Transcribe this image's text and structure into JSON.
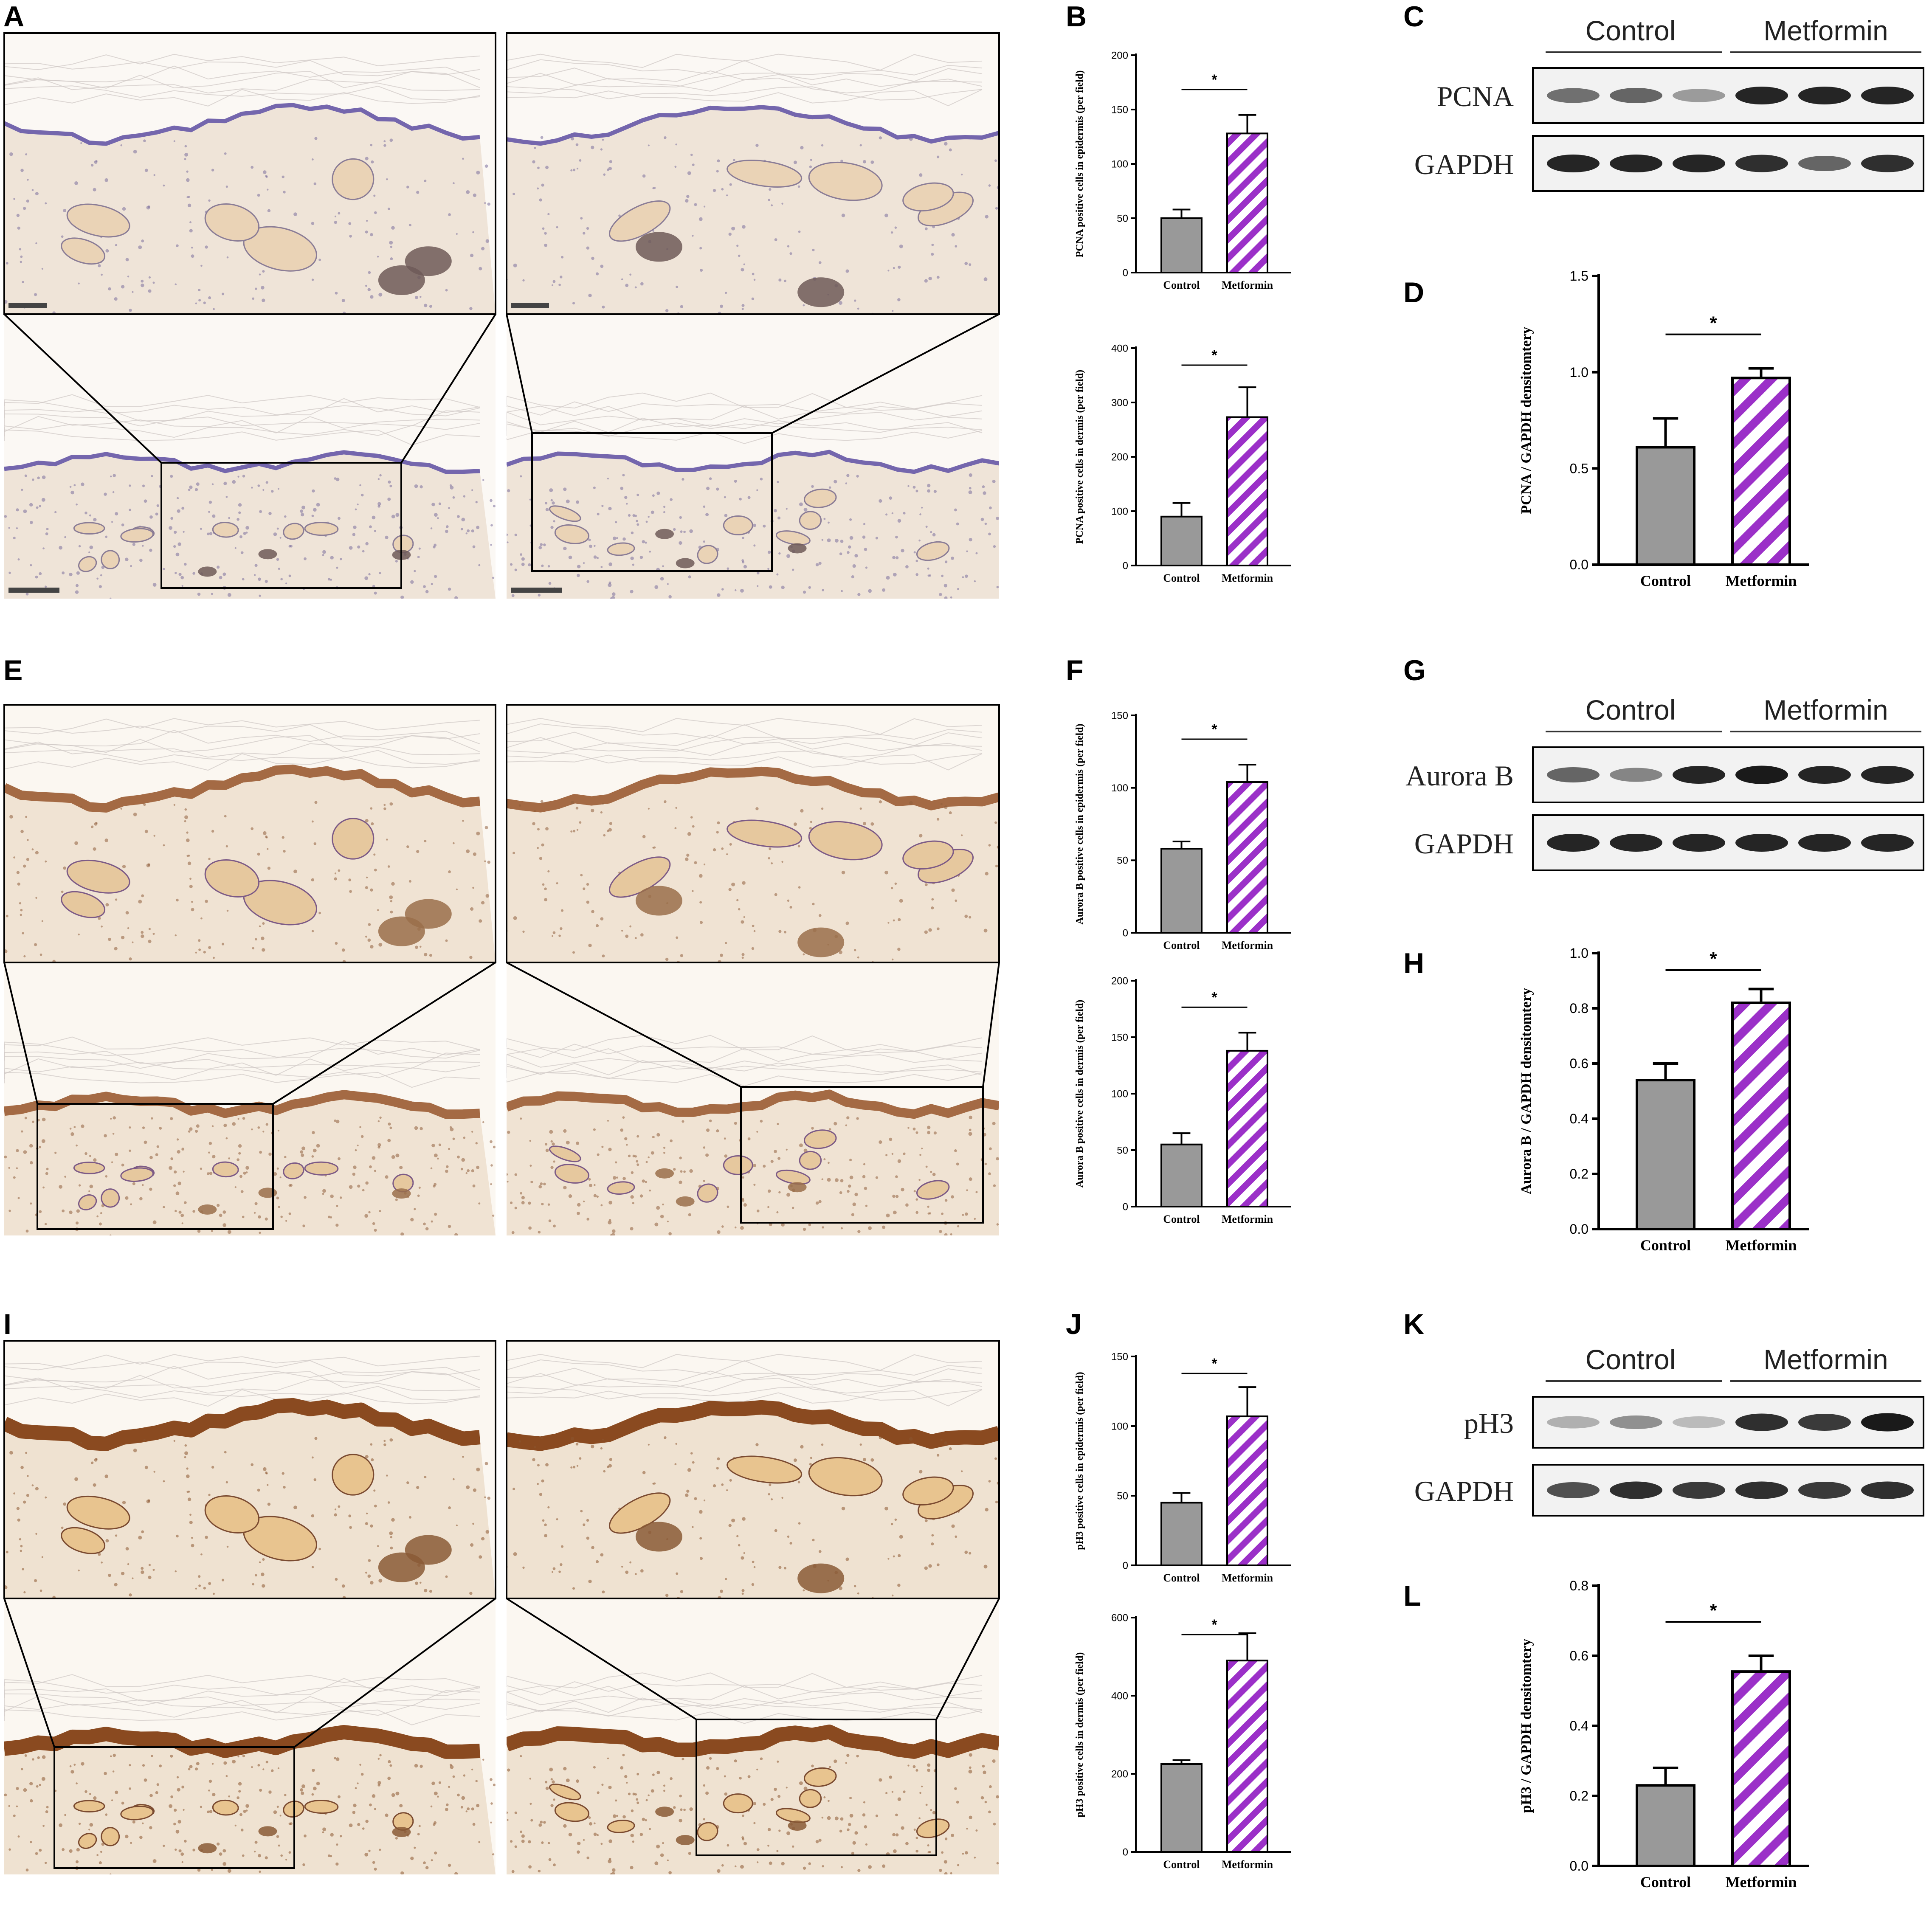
{
  "panels": {
    "A": "A",
    "B": "B",
    "C": "C",
    "D": "D",
    "E": "E",
    "F": "F",
    "G": "G",
    "H": "H",
    "I": "I",
    "J": "J",
    "K": "K",
    "L": "L"
  },
  "colors": {
    "control": "#999999",
    "metformin": "#9b30c8",
    "hematoxylin": "#6d5fa6",
    "dab": "#a9673a"
  },
  "micrographs": {
    "A": {
      "stain": "hematoxylin-light",
      "scale_bar": "scale-bar"
    },
    "E": {
      "stain": "dab-medium"
    },
    "I": {
      "stain": "dab-strong"
    }
  },
  "western": {
    "C": {
      "groups": [
        "Control",
        "Metformin"
      ],
      "rows": [
        "PCNA",
        "GAPDH"
      ],
      "target": [
        0.55,
        0.6,
        0.35,
        0.9,
        0.9,
        0.9
      ],
      "loading": [
        0.9,
        0.9,
        0.9,
        0.85,
        0.6,
        0.85
      ]
    },
    "G": {
      "groups": [
        "Control",
        "Metformin"
      ],
      "rows": [
        "Aurora B",
        "GAPDH"
      ],
      "target": [
        0.6,
        0.45,
        0.9,
        0.95,
        0.9,
        0.9
      ],
      "loading": [
        0.9,
        0.9,
        0.9,
        0.9,
        0.9,
        0.9
      ]
    },
    "K": {
      "groups": [
        "Control",
        "Metformin"
      ],
      "rows": [
        "pH3",
        "GAPDH"
      ],
      "target": [
        0.25,
        0.4,
        0.2,
        0.85,
        0.8,
        0.95
      ],
      "loading": [
        0.7,
        0.85,
        0.8,
        0.85,
        0.8,
        0.85
      ]
    }
  },
  "chart_data": [
    {
      "id": "B1",
      "type": "bar",
      "categories": [
        "Control",
        "Metformin"
      ],
      "values": [
        50,
        128
      ],
      "errors": [
        8,
        17
      ],
      "ylabel": "PCNA positive cells in epidermis (per field)",
      "ylim": [
        0,
        200
      ],
      "yticks": [
        "0",
        "50",
        "100",
        "150",
        "200"
      ],
      "sig": "*"
    },
    {
      "id": "B2",
      "type": "bar",
      "categories": [
        "Control",
        "Metformin"
      ],
      "values": [
        90,
        273
      ],
      "errors": [
        25,
        55
      ],
      "ylabel": "PCNA positive cells in dermis (per field)",
      "ylim": [
        0,
        400
      ],
      "yticks": [
        "0",
        "100",
        "200",
        "300",
        "400"
      ],
      "sig": "*"
    },
    {
      "id": "D",
      "type": "bar",
      "categories": [
        "Control",
        "Metformin"
      ],
      "values": [
        0.61,
        0.97
      ],
      "errors": [
        0.15,
        0.05
      ],
      "ylabel": "PCNA / GAPDH densitomtery",
      "ylim": [
        0,
        1.5
      ],
      "yticks": [
        "0.0",
        "0.5",
        "1.0",
        "1.5"
      ],
      "sig": "*"
    },
    {
      "id": "F1",
      "type": "bar",
      "categories": [
        "Control",
        "Metformin"
      ],
      "values": [
        58,
        104
      ],
      "errors": [
        5,
        12
      ],
      "ylabel": "Aurora B positive cells in epidermis (per field)",
      "ylim": [
        0,
        150
      ],
      "yticks": [
        "0",
        "50",
        "100",
        "150"
      ],
      "sig": "*"
    },
    {
      "id": "F2",
      "type": "bar",
      "categories": [
        "Control",
        "Metformin"
      ],
      "values": [
        55,
        138
      ],
      "errors": [
        10,
        16
      ],
      "ylabel": "Aurora B positive cells in dermis (per field)",
      "ylim": [
        0,
        200
      ],
      "yticks": [
        "0",
        "50",
        "100",
        "150",
        "200"
      ],
      "sig": "*"
    },
    {
      "id": "H",
      "type": "bar",
      "categories": [
        "Control",
        "Metformin"
      ],
      "values": [
        0.54,
        0.82
      ],
      "errors": [
        0.06,
        0.05
      ],
      "ylabel": "Aurora B / GAPDH densitomtery",
      "ylim": [
        0,
        1.0
      ],
      "yticks": [
        "0.0",
        "0.2",
        "0.4",
        "0.6",
        "0.8",
        "1.0"
      ],
      "sig": "*"
    },
    {
      "id": "J1",
      "type": "bar",
      "categories": [
        "Control",
        "Metformin"
      ],
      "values": [
        45,
        107
      ],
      "errors": [
        7,
        21
      ],
      "ylabel": "pH3 positive cells in epidermis (per field)",
      "ylim": [
        0,
        150
      ],
      "yticks": [
        "0",
        "50",
        "100",
        "150"
      ],
      "sig": "*"
    },
    {
      "id": "J2",
      "type": "bar",
      "categories": [
        "Control",
        "Metformin"
      ],
      "values": [
        225,
        490
      ],
      "errors": [
        10,
        70
      ],
      "ylabel": "pH3 positive cells in dermis (per field)",
      "ylim": [
        0,
        600
      ],
      "yticks": [
        "0",
        "200",
        "400",
        "600"
      ],
      "sig": "*"
    },
    {
      "id": "L",
      "type": "bar",
      "categories": [
        "Control",
        "Metformin"
      ],
      "values": [
        0.23,
        0.555
      ],
      "errors": [
        0.05,
        0.045
      ],
      "ylabel": "pH3 / GAPDH densitomtery",
      "ylim": [
        0,
        0.8
      ],
      "yticks": [
        "0.0",
        "0.2",
        "0.4",
        "0.6",
        "0.8"
      ],
      "sig": "*"
    }
  ]
}
